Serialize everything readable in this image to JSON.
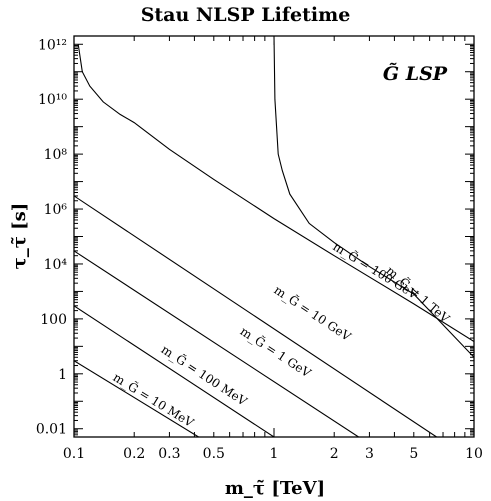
{
  "chart_data": {
    "type": "line",
    "title": "Stau NLSP Lifetime",
    "xlabel": "m_τ̃ [TeV]",
    "ylabel": "τ_τ̃ [s]",
    "x_scale": "log",
    "y_scale": "log",
    "xlim": [
      0.1,
      10
    ],
    "ylim": [
      0.005,
      2000000000000.0
    ],
    "x_ticks": [
      {
        "value": 0.1,
        "label": "0.1"
      },
      {
        "value": 0.2,
        "label": "0.2"
      },
      {
        "value": 0.3,
        "label": "0.3"
      },
      {
        "value": 0.5,
        "label": "0.5"
      },
      {
        "value": 1,
        "label": "1"
      },
      {
        "value": 2,
        "label": "2"
      },
      {
        "value": 3,
        "label": "3"
      },
      {
        "value": 5,
        "label": "5"
      },
      {
        "value": 10,
        "label": "10"
      }
    ],
    "y_ticks": [
      {
        "value": 0.01,
        "label": "0.01"
      },
      {
        "value": 1,
        "label": "1"
      },
      {
        "value": 100,
        "label": "100"
      },
      {
        "value": 10000,
        "label": "10⁴"
      },
      {
        "value": 1000000,
        "label": "10⁶"
      },
      {
        "value": 100000000,
        "label": "10⁸"
      },
      {
        "value": 10000000000,
        "label": "10¹⁰"
      },
      {
        "value": 1000000000000,
        "label": "10¹²"
      }
    ],
    "annotation": "G̃ LSP",
    "grid": false,
    "series": [
      {
        "name": "m_G̃ = 10 MeV",
        "x": [
          0.1,
          0.42
        ],
        "y": [
          3.0,
          0.005
        ]
      },
      {
        "name": "m_G̃ = 100 MeV",
        "x": [
          0.1,
          1.0
        ],
        "y": [
          300,
          0.005
        ]
      },
      {
        "name": "m_G̃ = 1 GeV",
        "x": [
          0.1,
          2.65
        ],
        "y": [
          30000,
          0.005
        ]
      },
      {
        "name": "m_G̃ = 10 GeV",
        "x": [
          0.1,
          6.5
        ],
        "y": [
          3000000,
          0.005
        ]
      },
      {
        "name": "m_G̃ = 100 GeV",
        "x": [
          0.105,
          0.11,
          0.12,
          0.14,
          0.17,
          0.2,
          0.3,
          0.5,
          1,
          2,
          5,
          10
        ],
        "y": [
          1000000000000.0,
          100000000000.0,
          30000000000.0,
          8000000000.0,
          2800000000.0,
          1400000000.0,
          150000000.0,
          12000000.0,
          450000.0,
          20000.0,
          350.0,
          15
        ]
      },
      {
        "name": "m_G̃ = 1 TeV",
        "x": [
          1.0,
          1.01,
          1.05,
          1.1,
          1.2,
          1.5,
          2,
          3,
          5,
          10
        ],
        "y": [
          2000000000000.0,
          10000000000.0,
          100000000.0,
          25000000.0,
          3500000.0,
          300000.0,
          60000.0,
          8000.0,
          800.0,
          4
        ]
      }
    ],
    "curve_labels": [
      "m_G̃ = 10 MeV",
      "m_G̃ = 100 MeV",
      "m_G̃ = 1 GeV",
      "m_G̃ = 10 GeV",
      "m_G̃ = 100 GeV",
      "m_G̃ = 1 TeV"
    ]
  }
}
